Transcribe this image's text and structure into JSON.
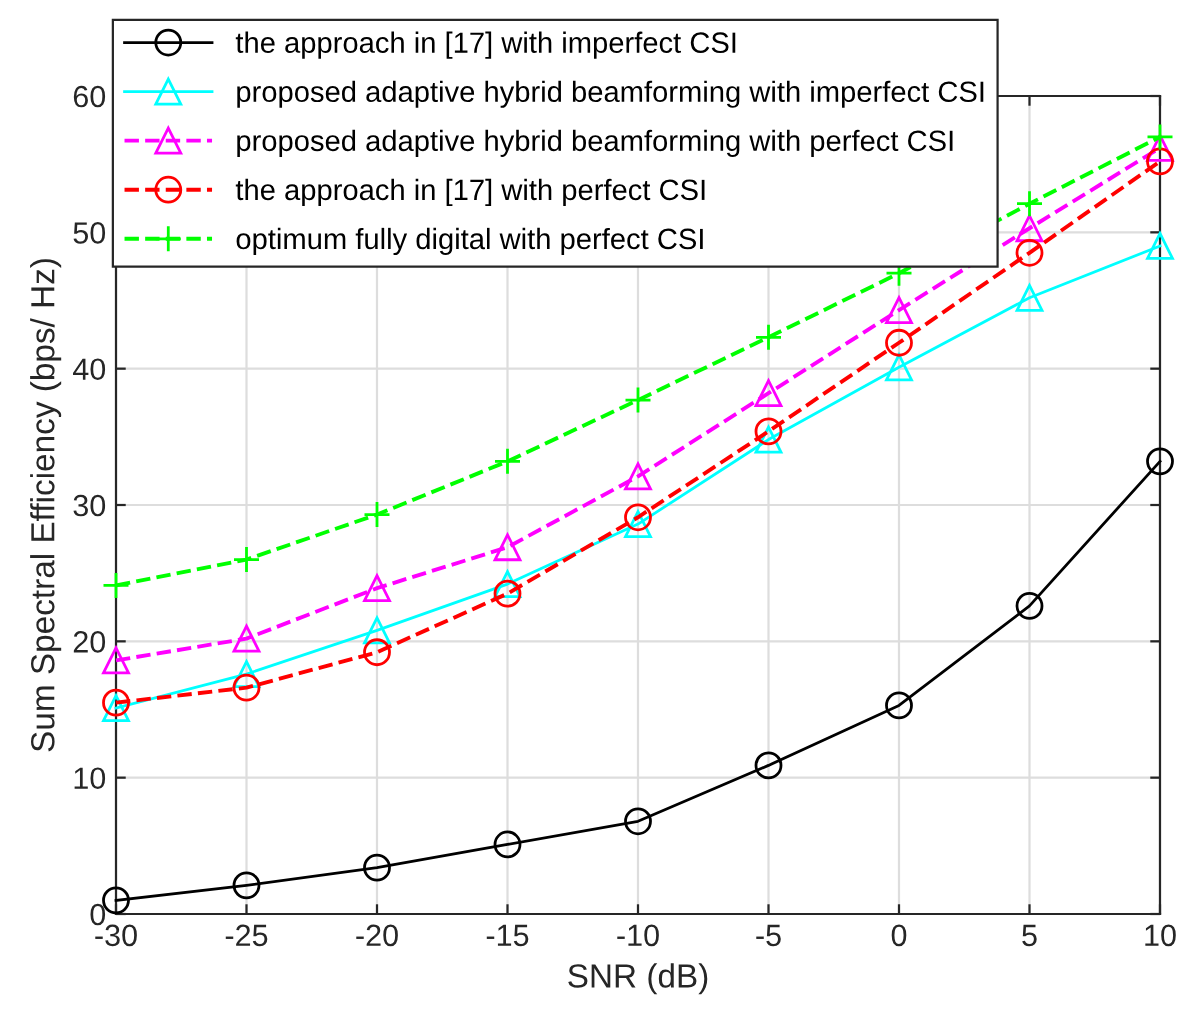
{
  "chart_data": {
    "type": "line",
    "xlabel": "SNR (dB)",
    "ylabel": "Sum Spectral Efficiency (bps/ Hz)",
    "x": [
      -30,
      -25,
      -20,
      -15,
      -10,
      -5,
      0,
      5,
      10
    ],
    "xlim": [
      -30,
      10
    ],
    "xticks": [
      -30,
      -25,
      -20,
      -15,
      -10,
      -5,
      0,
      5,
      10
    ],
    "ylim": [
      0,
      60
    ],
    "yticks": [
      0,
      10,
      20,
      30,
      40,
      50,
      60
    ],
    "grid": true,
    "legend": "top left",
    "series": [
      {
        "name": "the approach in [17] with imperfect CSI",
        "color": "#000000",
        "marker": "circle",
        "line_style": "solid",
        "values": [
          1.0,
          2.1,
          3.4,
          5.1,
          6.8,
          10.9,
          15.3,
          22.6,
          33.2
        ]
      },
      {
        "name": "proposed adaptive hybrid beamforming with imperfect CSI",
        "color": "#00ffff",
        "marker": "triangle",
        "line_style": "solid",
        "values": [
          15.1,
          17.6,
          20.8,
          24.2,
          28.6,
          34.8,
          40.1,
          45.2,
          49.0
        ]
      },
      {
        "name": "proposed adaptive hybrid beamforming with perfect CSI",
        "color": "#ff00ff",
        "marker": "triangle",
        "line_style": "dashed",
        "values": [
          18.6,
          20.2,
          23.9,
          26.9,
          32.1,
          38.2,
          44.3,
          50.3,
          56.2
        ]
      },
      {
        "name": "the approach in [17] with perfect CSI",
        "color": "#ff0000",
        "marker": "circle",
        "line_style": "dashed",
        "values": [
          15.5,
          16.6,
          19.2,
          23.5,
          29.1,
          35.4,
          41.9,
          48.5,
          55.2
        ]
      },
      {
        "name": "optimum fully digital with perfect CSI",
        "color": "#00ff00",
        "marker": "cross",
        "line_style": "dashed",
        "values": [
          24.1,
          26.0,
          29.3,
          33.2,
          37.7,
          42.3,
          47.0,
          52.1,
          57.0
        ]
      }
    ]
  }
}
